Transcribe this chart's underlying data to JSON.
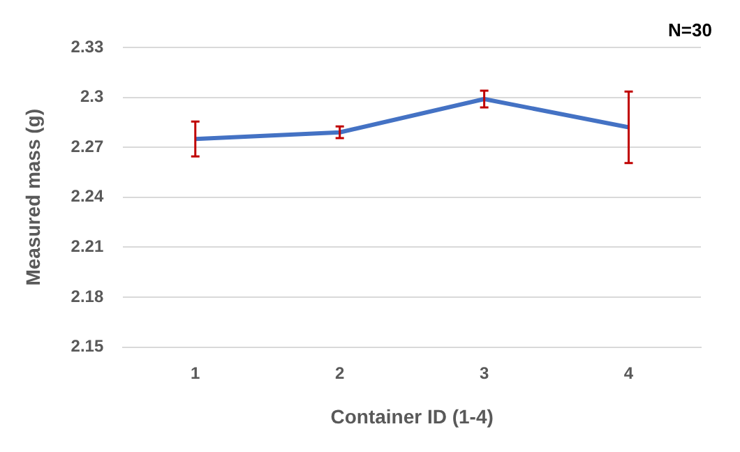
{
  "chart_data": {
    "type": "line",
    "xlabel": "Container ID (1-4)",
    "ylabel": "Measured mass (g)",
    "annotations": [
      "N=30"
    ],
    "categories": [
      "1",
      "2",
      "3",
      "4"
    ],
    "series": [
      {
        "color": "#4472c4",
        "values": [
          2.275,
          2.279,
          2.299,
          2.282
        ],
        "errors": [
          0.0105,
          0.0035,
          0.005,
          0.0215
        ]
      }
    ],
    "ylim": [
      2.15,
      2.33
    ],
    "yticks": [
      2.15,
      2.18,
      2.21,
      2.24,
      2.27,
      2.3,
      2.33
    ],
    "grid": "y",
    "legend": false,
    "marker": "none",
    "line_style": "solid"
  }
}
